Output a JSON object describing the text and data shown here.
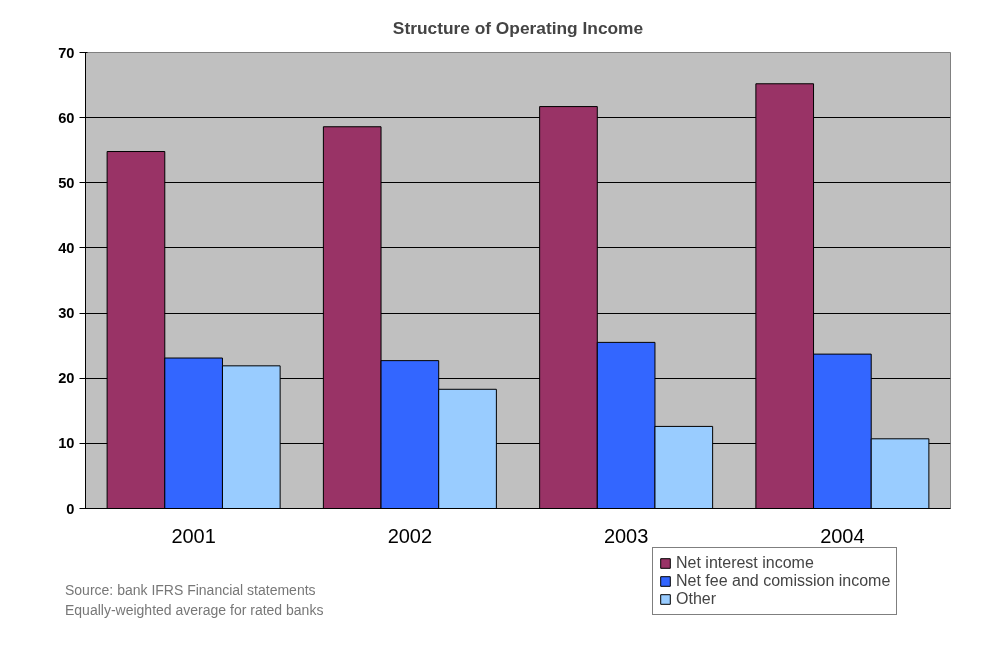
{
  "chart_data": {
    "type": "bar",
    "title": "Structure of Operating Income",
    "categories": [
      "2001",
      "2002",
      "2003",
      "2004"
    ],
    "series": [
      {
        "name": "Net interest income",
        "color": "#993366",
        "values": [
          54.8,
          58.6,
          61.7,
          65.2
        ]
      },
      {
        "name": "Net fee and comission income",
        "color": "#3366ff",
        "values": [
          23.1,
          22.7,
          25.5,
          23.7
        ]
      },
      {
        "name": "Other",
        "color": "#99ccff",
        "values": [
          21.9,
          18.3,
          12.6,
          10.7
        ]
      }
    ],
    "ylim": [
      0,
      70
    ],
    "yticks": [
      0,
      10,
      20,
      30,
      40,
      50,
      60,
      70
    ],
    "grid": "y",
    "legend": "bottom right",
    "annotations": [
      "Source: bank IFRS Financial statements",
      "Equally-weighted average for rated banks"
    ]
  }
}
